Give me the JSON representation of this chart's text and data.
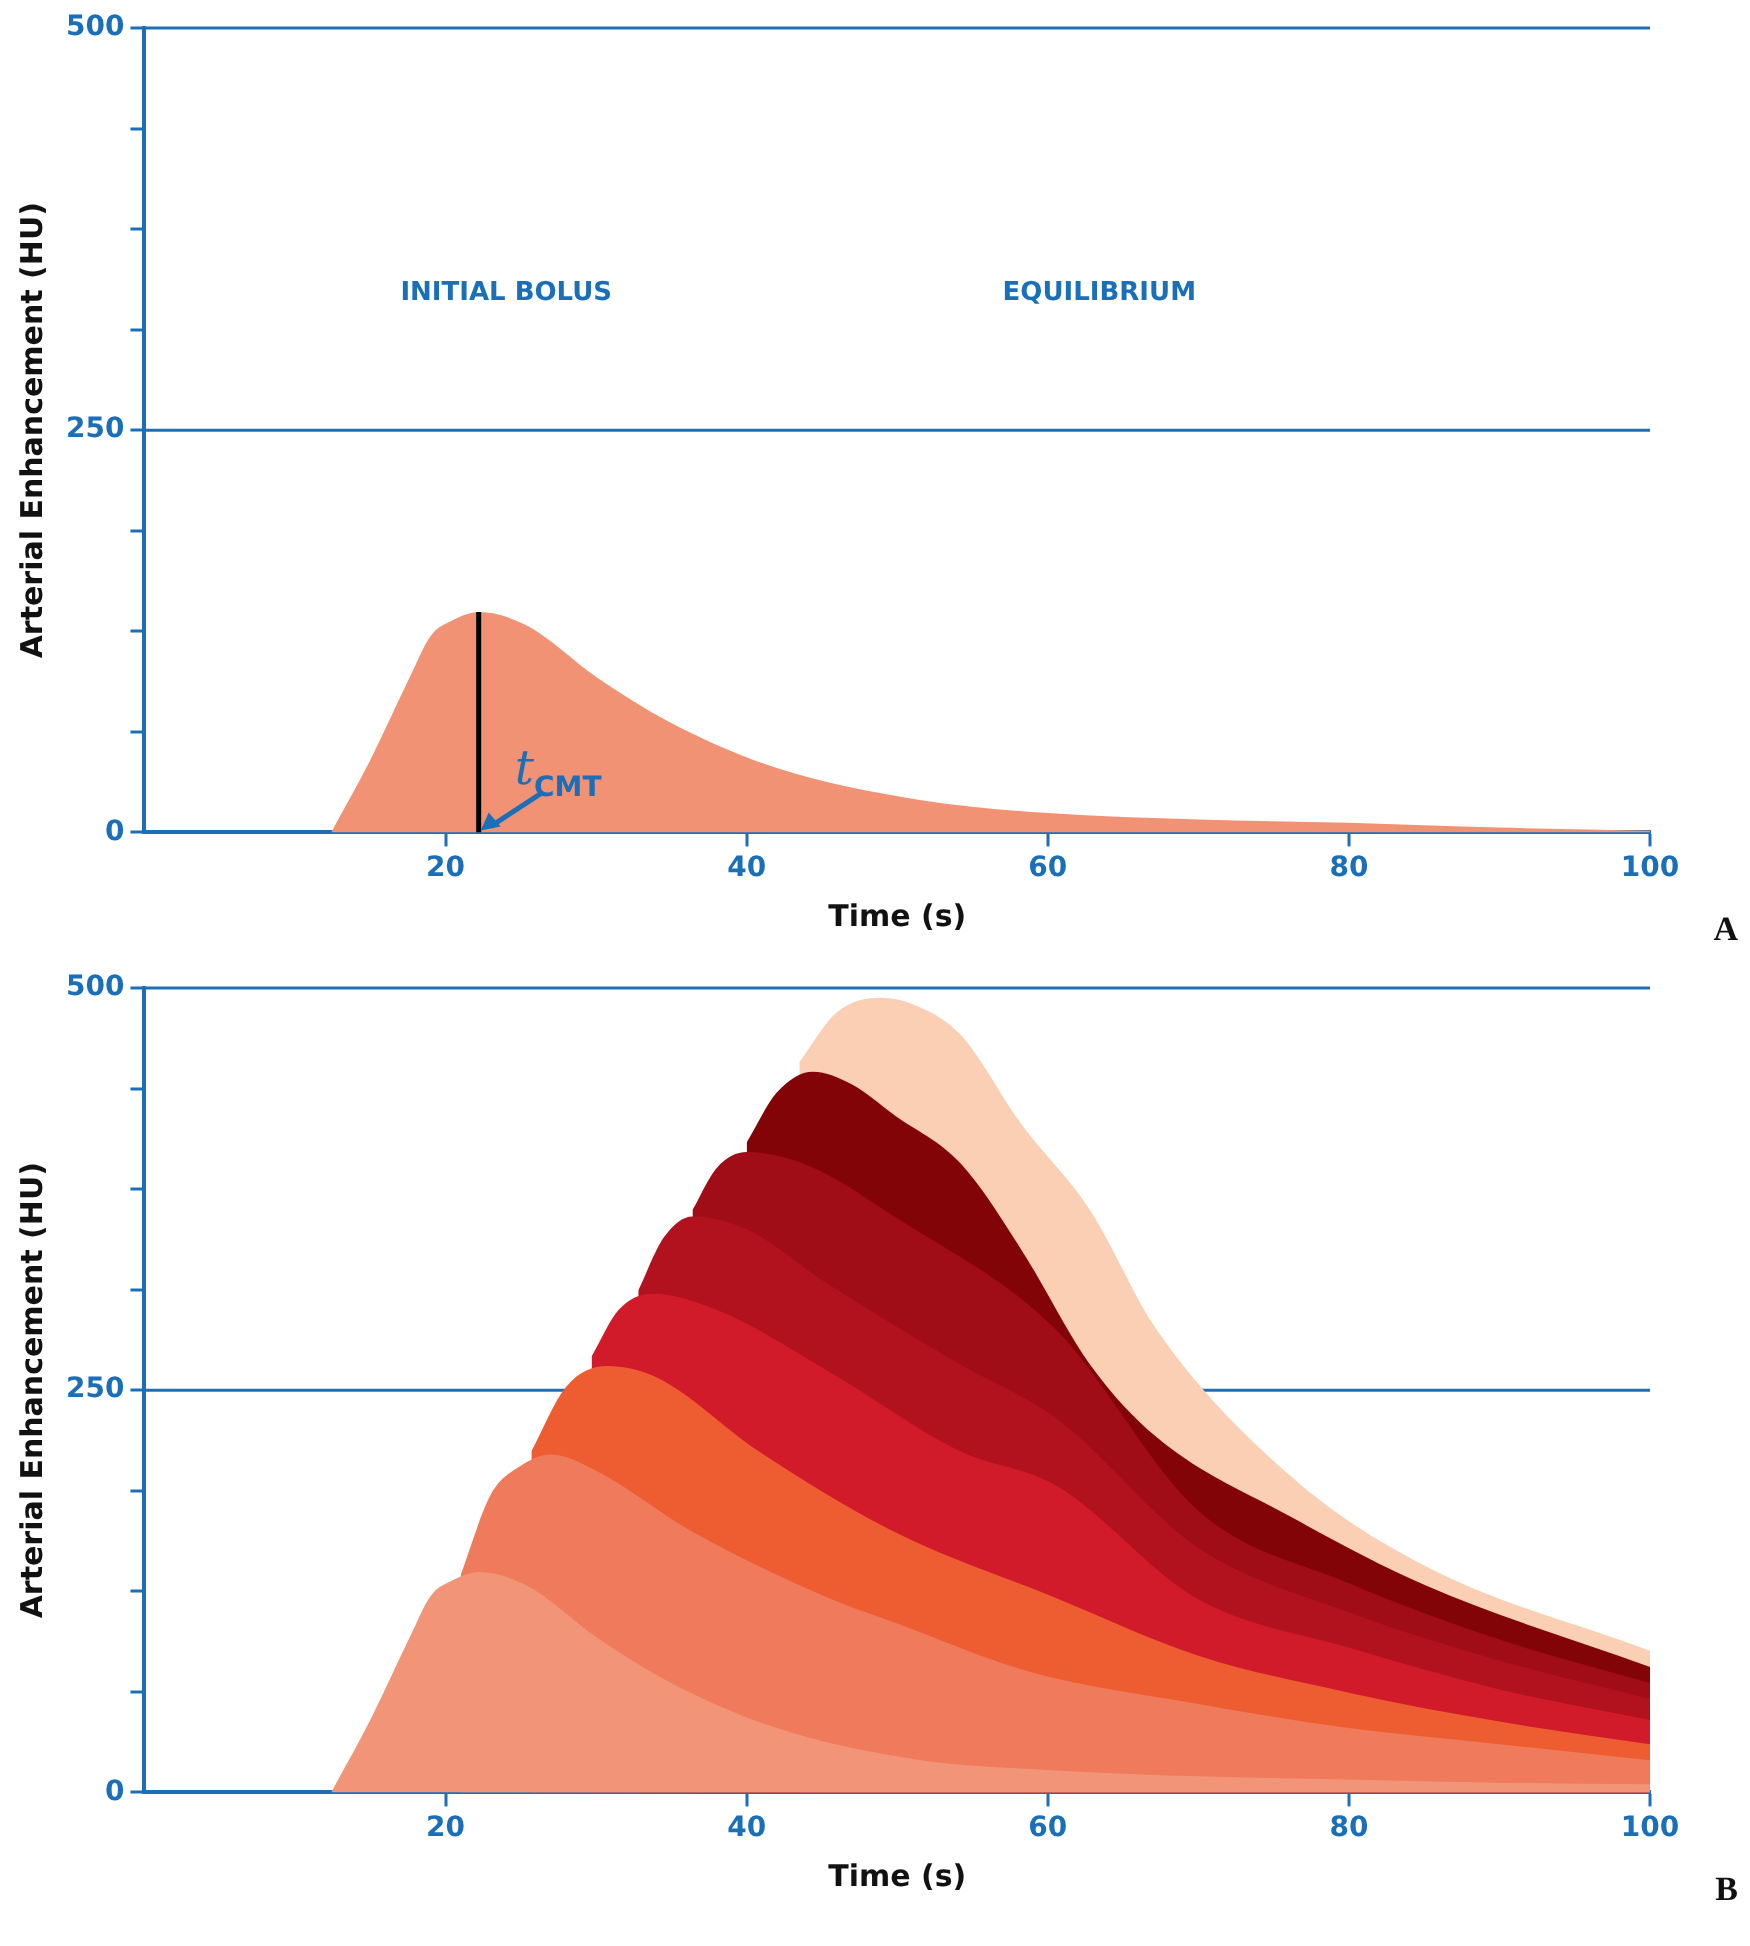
{
  "chart_data": [
    {
      "type": "area",
      "xlabel": "Time (s)",
      "ylabel": "Arterial Enhancement (HU)",
      "xlim": [
        0,
        100
      ],
      "xticks": [
        20,
        40,
        60,
        80,
        100
      ],
      "ylim": [
        0,
        500
      ],
      "yticks": [
        0,
        {
          "value": 62.5,
          "label": null
        },
        {
          "value": 125,
          "label": null
        },
        {
          "value": 187.5,
          "label": null
        },
        250,
        {
          "value": 312.5,
          "label": null
        },
        {
          "value": 375,
          "label": null
        },
        {
          "value": 437.5,
          "label": null
        },
        500
      ],
      "grid": false,
      "legend": false,
      "ref_lines": [
        {
          "axis": "y",
          "value": 250,
          "color": "#1f6fb5"
        },
        {
          "axis": "y",
          "value": 500,
          "color": "#1f6fb5"
        }
      ],
      "series": [
        {
          "type": "line",
          "color": "#000000",
          "x": [
            22.2,
            22.2
          ],
          "values": [
            0,
            137
          ]
        },
        {
          "type": "area",
          "color": "#f29274",
          "x": [
            12.4,
            15,
            17.7,
            19,
            20.5,
            22.2,
            25.3,
            30.1,
            34.8,
            42,
            51.6,
            60,
            70,
            80,
            90,
            100
          ],
          "values": [
            0,
            45,
            98,
            122,
            132,
            137,
            129,
            96,
            69,
            40,
            20,
            12,
            8,
            6,
            3,
            1
          ]
        }
      ],
      "annotations": [
        "INITIAL BOLUS",
        "EQUILIBRIUM",
        {
          "text": "t$_{CMT}$",
          "x": 22.2,
          "y": 0
        },
        "A"
      ]
    },
    {
      "type": "area",
      "xlabel": "Time (s)",
      "ylabel": "Arterial Enhancement (HU)",
      "xlim": [
        0,
        100
      ],
      "xticks": [
        20,
        40,
        60,
        80,
        100
      ],
      "ylim": [
        0,
        500
      ],
      "yticks": [
        0,
        {
          "value": 62.5,
          "label": null
        },
        {
          "value": 125,
          "label": null
        },
        {
          "value": 187.5,
          "label": null
        },
        250,
        {
          "value": 312.5,
          "label": null
        },
        {
          "value": 375,
          "label": null
        },
        {
          "value": 437.5,
          "label": null
        },
        500
      ],
      "grid": false,
      "legend": false,
      "ref_lines": [
        {
          "axis": "y",
          "value": 250,
          "color": "#1f6fb5"
        },
        {
          "axis": "y",
          "value": 500,
          "color": "#1f6fb5"
        }
      ],
      "series": [
        {
          "color": "#f29478",
          "x": [
            12.4,
            15,
            17.7,
            19,
            20.5,
            22.2,
            25.3,
            30.1,
            34.8,
            42,
            51.6,
            60,
            70,
            80,
            90,
            100
          ],
          "values": [
            0,
            45,
            98,
            122,
            132,
            137,
            129,
            96,
            69,
            40,
            20,
            14,
            10,
            8,
            6,
            5
          ]
        },
        {
          "color": "#ef7a5c",
          "x": [
            21,
            23,
            25,
            27,
            30,
            36.4,
            45.4,
            50,
            58.8,
            70,
            80,
            90,
            100
          ],
          "values": [
            135,
            185,
            203,
            210,
            200,
            162,
            121,
            105,
            75,
            55,
            40,
            30,
            20
          ]
        },
        {
          "color": "#ee5d32",
          "x": [
            25.7,
            28,
            30.7,
            34,
            40.8,
            49.8,
            60.5,
            70,
            80,
            90,
            100
          ],
          "values": [
            212,
            252,
            265,
            258,
            212,
            162,
            121,
            85,
            62,
            44,
            30
          ]
        },
        {
          "color": "#d11b2a",
          "x": [
            29.7,
            31.5,
            33.7,
            38,
            45.4,
            54.2,
            60.5,
            70,
            80,
            90,
            100
          ],
          "values": [
            271,
            300,
            310,
            300,
            262,
            212,
            191,
            120,
            90,
            64,
            45
          ]
        },
        {
          "color": "#b2111e",
          "x": [
            32.8,
            34.5,
            36.4,
            40,
            45.4,
            54.2,
            60.5,
            70,
            80,
            90,
            100
          ],
          "values": [
            312,
            345,
            358,
            350,
            316,
            266,
            233,
            152,
            112,
            82,
            58
          ]
        },
        {
          "color": "#a00d16",
          "x": [
            36.4,
            38,
            40,
            44,
            49.8,
            60.5,
            70,
            80,
            90,
            100
          ],
          "values": [
            362,
            388,
            398,
            390,
            358,
            288,
            175,
            130,
            95,
            68
          ]
        },
        {
          "color": "#830407",
          "x": [
            40,
            42,
            44.4,
            47,
            49.8,
            54.2,
            58.2,
            62.8,
            67.2,
            76.2,
            85,
            100
          ],
          "values": [
            404,
            435,
            448,
            440,
            421,
            391,
            338,
            266,
            221,
            171,
            129,
            78
          ]
        },
        {
          "color": "#fbcfb3",
          "x": [
            43.5,
            46,
            48.9,
            51,
            54.2,
            58.2,
            62.8,
            67.2,
            76.2,
            85,
            100
          ],
          "values": [
            454,
            485,
            494,
            490,
            471,
            416,
            362,
            288,
            196,
            141,
            88
          ]
        }
      ],
      "annotations": [
        "B"
      ]
    }
  ]
}
